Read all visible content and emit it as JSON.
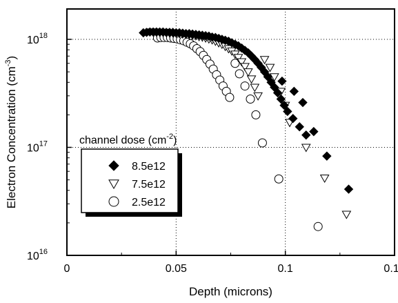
{
  "chart_data": {
    "type": "scatter",
    "xlabel": "Depth (microns)",
    "ylabel_main": "Electron Concentration (cm",
    "ylabel_sup": "-3",
    "ylabel_close": ")",
    "xlim": [
      0,
      0.15
    ],
    "ylim": [
      1e+16,
      1e+18
    ],
    "yscale": "log",
    "grid": "dotted at x=0.05, x=0.1, y=1e17, y=1e18",
    "x_ticks": [
      {
        "value": 0,
        "label": "0"
      },
      {
        "value": 0.05,
        "label": "0.05"
      },
      {
        "value": 0.1,
        "label": "0.1"
      },
      {
        "value": 0.15,
        "label": "0.15"
      }
    ],
    "y_ticks": [
      {
        "value": 1e+16,
        "base": "10",
        "exp": "16"
      },
      {
        "value": 1e+17,
        "base": "10",
        "exp": "17"
      },
      {
        "value": 1e+18,
        "base": "10",
        "exp": "18"
      }
    ],
    "legend": {
      "title_main": "channel dose (cm",
      "title_sup": "-2",
      "title_close": ")",
      "placement": "lower-left"
    },
    "series": [
      {
        "name": "8.5e12",
        "marker": "diamond-filled",
        "color": "#000000",
        "points": [
          [
            0.035,
            1.15e+18
          ],
          [
            0.0365,
            1.16e+18
          ],
          [
            0.038,
            1.17e+18
          ],
          [
            0.0395,
            1.17e+18
          ],
          [
            0.041,
            1.17e+18
          ],
          [
            0.0425,
            1.17e+18
          ],
          [
            0.044,
            1.17e+18
          ],
          [
            0.0455,
            1.16e+18
          ],
          [
            0.047,
            1.16e+18
          ],
          [
            0.0485,
            1.16e+18
          ],
          [
            0.05,
            1.15e+18
          ],
          [
            0.0515,
            1.15e+18
          ],
          [
            0.053,
            1.14e+18
          ],
          [
            0.0545,
            1.13e+18
          ],
          [
            0.056,
            1.13e+18
          ],
          [
            0.0575,
            1.12e+18
          ],
          [
            0.059,
            1.11e+18
          ],
          [
            0.0605,
            1.1e+18
          ],
          [
            0.062,
            1.09e+18
          ],
          [
            0.0635,
            1.08e+18
          ],
          [
            0.065,
            1.07e+18
          ],
          [
            0.0665,
            1.05e+18
          ],
          [
            0.068,
            1.04e+18
          ],
          [
            0.0695,
            1.02e+18
          ],
          [
            0.071,
            1e+18
          ],
          [
            0.0725,
            9.8e+17
          ],
          [
            0.074,
            9.6e+17
          ],
          [
            0.0755,
            9.3e+17
          ],
          [
            0.077,
            9e+17
          ],
          [
            0.0785,
            8.7e+17
          ],
          [
            0.08,
            8.3e+17
          ],
          [
            0.0815,
            7.9e+17
          ],
          [
            0.083,
            7.5e+17
          ],
          [
            0.0845,
            7e+17
          ],
          [
            0.086,
            6.5e+17
          ],
          [
            0.0875,
            6e+17
          ],
          [
            0.089,
            5.5e+17
          ],
          [
            0.0905,
            5e+17
          ],
          [
            0.092,
            4.5e+17
          ],
          [
            0.0935,
            4e+17
          ],
          [
            0.095,
            3.6e+17
          ],
          [
            0.0965,
            3.2e+17
          ],
          [
            0.098,
            2.8e+17
          ],
          [
            0.0995,
            2.45e+17
          ],
          [
            0.101,
            2.15e+17
          ],
          [
            0.1035,
            1.85e+17
          ],
          [
            0.1065,
            1.55e+17
          ],
          [
            0.1095,
            1.3e+17
          ],
          [
            0.0985,
            4.1e+17
          ],
          [
            0.104,
            3.3e+17
          ],
          [
            0.108,
            2.6e+17
          ],
          [
            0.113,
            1.4e+17
          ],
          [
            0.119,
            8.3e+16
          ],
          [
            0.129,
            4.1e+16
          ]
        ]
      },
      {
        "name": "7.5e12",
        "marker": "triangle-down-open",
        "color": "#000000",
        "points": [
          [
            0.038,
            1.17e+18
          ],
          [
            0.0395,
            1.17e+18
          ],
          [
            0.041,
            1.17e+18
          ],
          [
            0.0425,
            1.16e+18
          ],
          [
            0.044,
            1.16e+18
          ],
          [
            0.0455,
            1.16e+18
          ],
          [
            0.047,
            1.15e+18
          ],
          [
            0.0485,
            1.15e+18
          ],
          [
            0.05,
            1.14e+18
          ],
          [
            0.0515,
            1.13e+18
          ],
          [
            0.053,
            1.12e+18
          ],
          [
            0.0545,
            1.11e+18
          ],
          [
            0.056,
            1.1e+18
          ],
          [
            0.0575,
            1.09e+18
          ],
          [
            0.059,
            1.08e+18
          ],
          [
            0.0605,
            1.06e+18
          ],
          [
            0.062,
            1.05e+18
          ],
          [
            0.0635,
            1.03e+18
          ],
          [
            0.065,
            1.01e+18
          ],
          [
            0.0665,
            9.9e+17
          ],
          [
            0.068,
            9.6e+17
          ],
          [
            0.0695,
            9.3e+17
          ],
          [
            0.071,
            9e+17
          ],
          [
            0.0725,
            8.6e+17
          ],
          [
            0.074,
            8.2e+17
          ],
          [
            0.0755,
            7.8e+17
          ],
          [
            0.077,
            7.3e+17
          ],
          [
            0.0785,
            6.8e+17
          ],
          [
            0.08,
            6.2e+17
          ],
          [
            0.0815,
            5.6e+17
          ],
          [
            0.083,
            5e+17
          ],
          [
            0.0845,
            4.3e+17
          ],
          [
            0.086,
            3.6e+17
          ],
          [
            0.0875,
            3e+17
          ],
          [
            0.0905,
            6.5e+17
          ],
          [
            0.093,
            5.5e+17
          ],
          [
            0.095,
            4.5e+17
          ],
          [
            0.098,
            3.3e+17
          ],
          [
            0.1,
            2.45e+17
          ],
          [
            0.102,
            1.7e+17
          ],
          [
            0.1095,
            1e+17
          ],
          [
            0.118,
            5.2e+16
          ],
          [
            0.128,
            2.4e+16
          ]
        ]
      },
      {
        "name": "2.5e12",
        "marker": "circle-open",
        "color": "#000000",
        "points": [
          [
            0.0415,
            1.03e+18
          ],
          [
            0.043,
            1.04e+18
          ],
          [
            0.0445,
            1.04e+18
          ],
          [
            0.046,
            1.04e+18
          ],
          [
            0.0475,
            1.03e+18
          ],
          [
            0.049,
            1.02e+18
          ],
          [
            0.0505,
            1.01e+18
          ],
          [
            0.052,
            9.9e+17
          ],
          [
            0.0535,
            9.7e+17
          ],
          [
            0.055,
            9.4e+17
          ],
          [
            0.0565,
            9.1e+17
          ],
          [
            0.058,
            8.7e+17
          ],
          [
            0.0595,
            8.2e+17
          ],
          [
            0.061,
            7.7e+17
          ],
          [
            0.0625,
            7.1e+17
          ],
          [
            0.064,
            6.5e+17
          ],
          [
            0.0655,
            5.9e+17
          ],
          [
            0.067,
            5.3e+17
          ],
          [
            0.0685,
            4.7e+17
          ],
          [
            0.07,
            4.2e+17
          ],
          [
            0.0715,
            3.7e+17
          ],
          [
            0.073,
            3.3e+17
          ],
          [
            0.0745,
            2.9e+17
          ],
          [
            0.077,
            6e+17
          ],
          [
            0.079,
            4.8e+17
          ],
          [
            0.0815,
            3.7e+17
          ],
          [
            0.084,
            2.8e+17
          ],
          [
            0.0865,
            2e+17
          ],
          [
            0.0895,
            1.1e+17
          ],
          [
            0.097,
            5.1e+16
          ],
          [
            0.115,
            1.85e+16
          ]
        ]
      }
    ]
  }
}
